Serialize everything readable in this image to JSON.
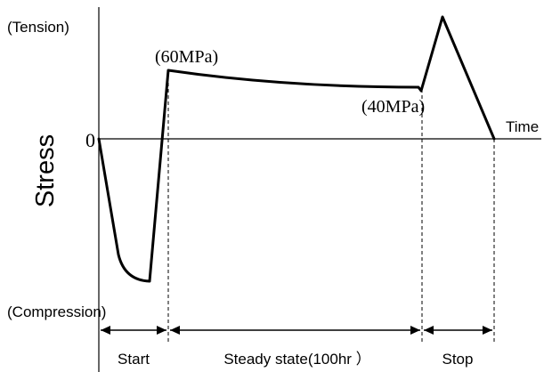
{
  "labels": {
    "tension": "(Tension)",
    "compression": "(Compression)",
    "stress_axis": "Stress",
    "time_axis": "Time",
    "zero": "0",
    "peak_start": "(60MPa)",
    "peak_end": "(40MPa)"
  },
  "phases": {
    "start": "Start",
    "steady": "Steady state(100hr ）",
    "stop": "Stop"
  }
}
